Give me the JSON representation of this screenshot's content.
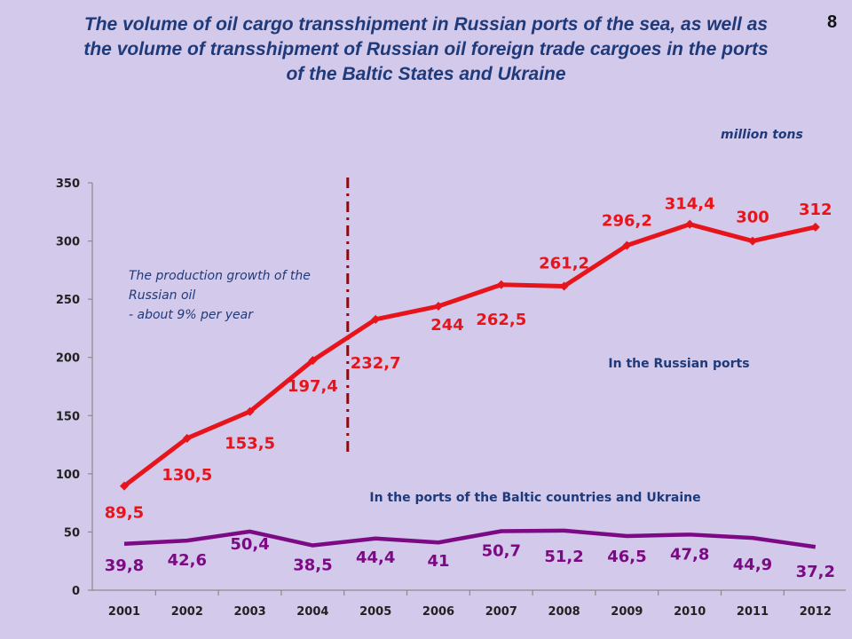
{
  "page": {
    "title_lines": [
      "The volume of oil cargo transshipment in Russian ports of the sea, as well as",
      "the volume of transshipment of Russian oil foreign trade cargoes in the ports",
      "of the Baltic States and Ukraine"
    ],
    "page_number": "8",
    "units": "million tons"
  },
  "chart_data": {
    "type": "line",
    "title": "The volume of oil cargo transshipment in Russian ports of the sea, as well as the volume of transshipment of Russian oil foreign trade cargoes in the ports of the Baltic States and Ukraine",
    "xlabel": "",
    "ylabel": "",
    "units": "million tons",
    "categories": [
      "2001",
      "2002",
      "2003",
      "2004",
      "2005",
      "2006",
      "2007",
      "2008",
      "2009",
      "2010",
      "2011",
      "2012"
    ],
    "y_ticks": [
      "0",
      "50",
      "100",
      "150",
      "200",
      "250",
      "300",
      "350"
    ],
    "ylim": [
      0,
      350
    ],
    "grid": false,
    "series": [
      {
        "name": "In the Russian ports",
        "color": "#e8141b",
        "values": [
          89.5,
          130.5,
          153.5,
          197.4,
          232.7,
          244,
          262.5,
          261.2,
          296.2,
          314.4,
          300,
          312
        ],
        "labels": [
          "89,5",
          "130,5",
          "153,5",
          "197,4",
          "232,7",
          "244",
          "262,5",
          "261,2",
          "296,2",
          "314,4",
          "300",
          "312"
        ]
      },
      {
        "name": "In the ports of the Baltic countries and Ukraine",
        "color": "#7b0a84",
        "values": [
          39.8,
          42.6,
          50.4,
          38.5,
          44.4,
          41,
          50.7,
          51.2,
          46.5,
          47.8,
          44.9,
          37.2
        ],
        "labels": [
          "39,8",
          "42,6",
          "50,4",
          "38,5",
          "44,4",
          "41",
          "50,7",
          "51,2",
          "46,5",
          "47,8",
          "44,9",
          "37,2"
        ]
      }
    ],
    "annotation_lines": [
      "The production growth of the",
      "Russian oil",
      "- about 9% per year"
    ],
    "divider_after": "2004",
    "divider_color": "#8b0a12"
  }
}
